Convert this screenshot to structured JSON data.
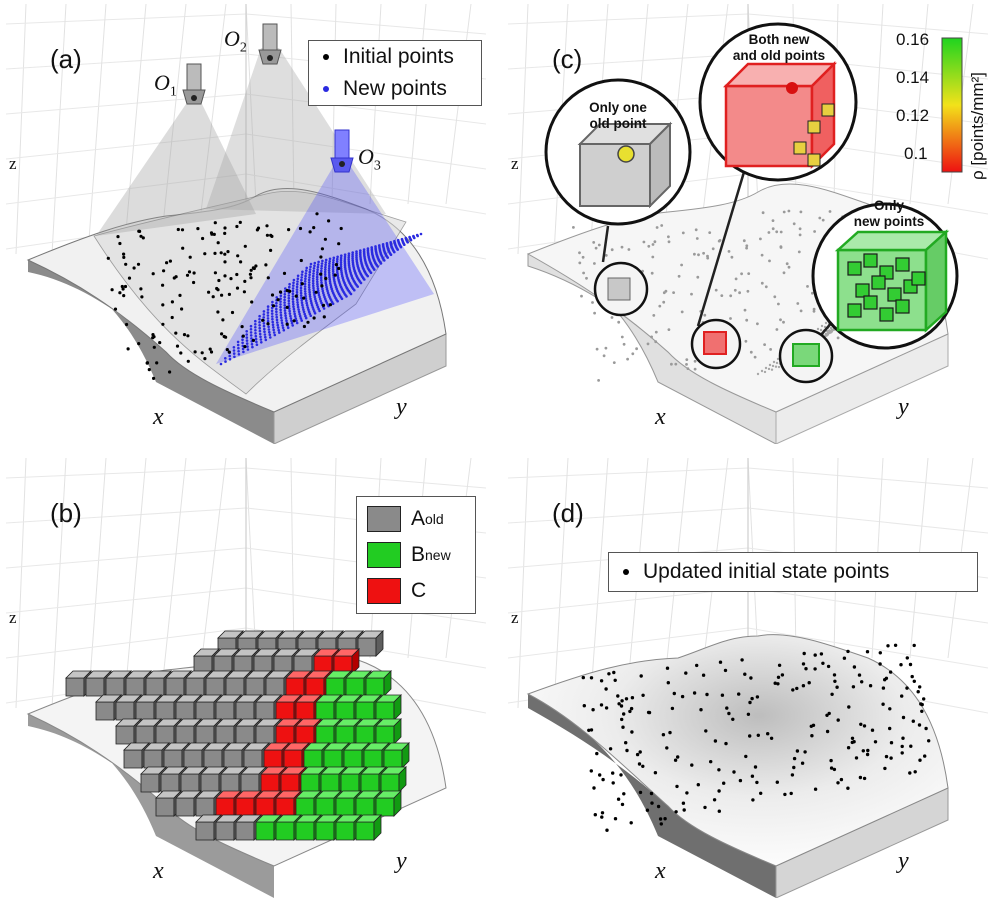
{
  "panels": {
    "a": {
      "label": "(a)",
      "axes": {
        "x": "x",
        "y": "y",
        "z": "z"
      },
      "legend": [
        {
          "label": "Initial points",
          "color": "#000000"
        },
        {
          "label": "New points",
          "color": "#2a2ae0"
        }
      ],
      "cameras": [
        {
          "name": "O",
          "sub": "1",
          "color": "#888888"
        },
        {
          "name": "O",
          "sub": "2",
          "color": "#888888"
        },
        {
          "name": "O",
          "sub": "3",
          "color": "#3a3aee"
        }
      ]
    },
    "b": {
      "label": "(b)",
      "axes": {
        "x": "x",
        "y": "y",
        "z": "z"
      },
      "legend": [
        {
          "label": "A",
          "sup": "old",
          "color": "#8a8a8a"
        },
        {
          "label": "B",
          "sup": "new",
          "color": "#22cc22"
        },
        {
          "label": "C",
          "sup": "",
          "color": "#ee1111"
        }
      ]
    },
    "c": {
      "label": "(c)",
      "axes": {
        "x": "x",
        "y": "y",
        "z": "z"
      },
      "callouts": {
        "old": [
          "Only one",
          "old point"
        ],
        "both": [
          "Both new",
          "and old points"
        ],
        "new": [
          "Only",
          "new points"
        ]
      },
      "colorbar": {
        "title": "ρ [points/mm²]",
        "ticks": [
          "0.16",
          "0.14",
          "0.12",
          "0.1"
        ],
        "colors": [
          "#1fd41f",
          "#f2e21a",
          "#ee1111"
        ]
      }
    },
    "d": {
      "label": "(d)",
      "axes": {
        "x": "x",
        "y": "y",
        "z": "z"
      },
      "legend": [
        {
          "label": "Updated initial state points",
          "color": "#000000"
        }
      ]
    }
  }
}
